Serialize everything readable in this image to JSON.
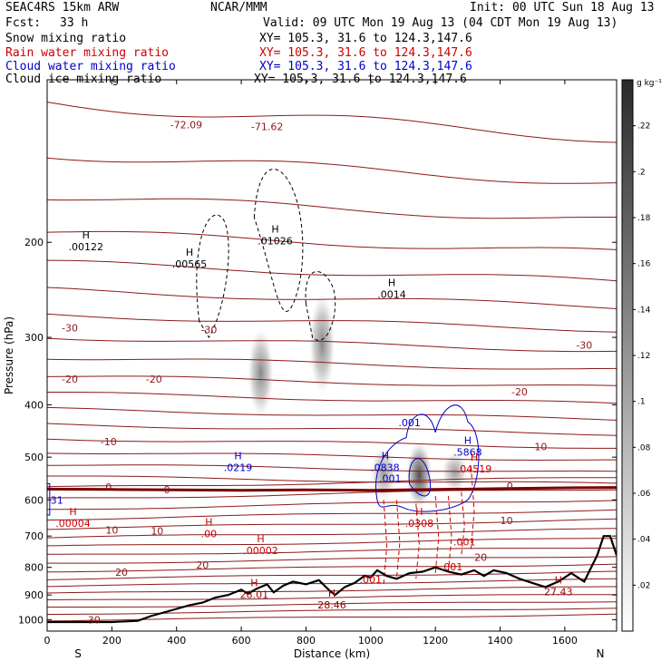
{
  "header": {
    "model": "SEAC4RS 15km ARW",
    "center": "NCAR/MMM",
    "init": "Init: 00 UTC Sun 18 Aug 13",
    "fcst_label": "Fcst:",
    "fcst_value": "33 h",
    "valid": "Valid: 09 UTC Mon 19 Aug 13 (04 CDT Mon 19 Aug 13)",
    "fields": [
      {
        "name": "Snow mixing ratio",
        "xy": "XY= 105.3, 31.6 to 124.3,147.6",
        "color": "#000000"
      },
      {
        "name": "Rain water mixing ratio",
        "xy": "XY= 105.3, 31.6 to 124.3,147.6",
        "color": "#cc0000"
      },
      {
        "name": "Cloud water mixing ratio",
        "xy": "XY= 105.3, 31.6 to 124.3,147.6",
        "color": "#0000cc"
      },
      {
        "name": "Cloud ice mixing ratio",
        "xy": "XY= 105.3, 31.6 to 124.3,147.6",
        "color": "#000000"
      }
    ]
  },
  "chart_data": {
    "type": "contour cross-section",
    "xlabel": "Distance (km)",
    "ylabel": "Pressure (hPa)",
    "xlim": [
      0,
      1760
    ],
    "ylim": [
      1050,
      100
    ],
    "y_scale": "log",
    "x_ticks": [
      "0",
      "200",
      "400",
      "600",
      "800",
      "1000",
      "1200",
      "1400",
      "1600"
    ],
    "y_ticks": [
      "200",
      "300",
      "400",
      "500",
      "600",
      "700",
      "800",
      "900",
      "1000"
    ],
    "endpoints": {
      "left": "S",
      "right": "N"
    },
    "colorbar": {
      "unit": "g kg⁻¹",
      "ticks": [
        ".02",
        ".04",
        ".06",
        ".08",
        ".1",
        ".12",
        ".14",
        ".16",
        ".18",
        ".2",
        ".22"
      ],
      "range": [
        0,
        0.24
      ]
    },
    "temperature_labels": [
      {
        "text": "-72.09",
        "x": 430,
        "p": 121
      },
      {
        "text": "-71.62",
        "x": 680,
        "p": 122
      },
      {
        "text": "-30",
        "x": 70,
        "p": 288
      },
      {
        "text": "-30",
        "x": 500,
        "p": 290
      },
      {
        "text": "-30",
        "x": 1660,
        "p": 310
      },
      {
        "text": "-20",
        "x": 70,
        "p": 358
      },
      {
        "text": "-20",
        "x": 330,
        "p": 358
      },
      {
        "text": "-20",
        "x": 1460,
        "p": 378
      },
      {
        "text": "-10",
        "x": 190,
        "p": 468
      },
      {
        "text": "-10",
        "x": 1520,
        "p": 478
      },
      {
        "text": "0",
        "x": 190,
        "p": 568
      },
      {
        "text": "0",
        "x": 370,
        "p": 574
      },
      {
        "text": "0",
        "x": 1430,
        "p": 565
      },
      {
        "text": "10",
        "x": 200,
        "p": 682
      },
      {
        "text": "10",
        "x": 340,
        "p": 685
      },
      {
        "text": "10",
        "x": 1420,
        "p": 655
      },
      {
        "text": "20",
        "x": 230,
        "p": 816
      },
      {
        "text": "20",
        "x": 480,
        "p": 791
      },
      {
        "text": "20",
        "x": 1340,
        "p": 766
      },
      {
        "text": "30",
        "x": 145,
        "p": 1000
      }
    ],
    "extrema": [
      {
        "kind": "H",
        "value": ".00122",
        "x": 120,
        "p": 200,
        "color": "#000000"
      },
      {
        "kind": "H",
        "value": ".00565",
        "x": 440,
        "p": 215,
        "color": "#000000"
      },
      {
        "kind": "H",
        "value": ".01026",
        "x": 705,
        "p": 195,
        "color": "#000000"
      },
      {
        "kind": "H",
        "value": ".0014",
        "x": 1065,
        "p": 245,
        "color": "#000000"
      },
      {
        "kind": "H",
        "value": ".0219",
        "x": 590,
        "p": 512,
        "color": "#0000cc"
      },
      {
        "kind": "H",
        "value": ".0838",
        "x": 1045,
        "p": 512,
        "color": "#0000cc"
      },
      {
        "kind": "H",
        "value": ".5868",
        "x": 1300,
        "p": 480,
        "color": "#0000cc"
      },
      {
        "kind": "H",
        "value": ".00004",
        "x": 80,
        "p": 650,
        "color": "#cc0000"
      },
      {
        "kind": "H",
        "value": ".00",
        "x": 500,
        "p": 680,
        "color": "#cc0000"
      },
      {
        "kind": "H",
        "value": ".00002",
        "x": 660,
        "p": 730,
        "color": "#cc0000"
      },
      {
        "kind": "H",
        "value": ".0308",
        "x": 1150,
        "p": 650,
        "color": "#cc0000"
      },
      {
        "kind": "H",
        "value": ".04519",
        "x": 1320,
        "p": 515,
        "color": "#cc0000"
      },
      {
        "kind": "H",
        "value": "28.01",
        "x": 640,
        "p": 880,
        "color": "#990000"
      },
      {
        "kind": "H",
        "value": "28.46",
        "x": 880,
        "p": 920,
        "color": "#990000"
      },
      {
        "kind": "H",
        "value": "27.43",
        "x": 1580,
        "p": 870,
        "color": "#990000"
      }
    ],
    "small_labels": [
      {
        "text": ".001",
        "x": 1120,
        "p": 438,
        "color": "#0000cc"
      },
      {
        "text": ".001",
        "x": 1060,
        "p": 556,
        "color": "#0000cc"
      },
      {
        "text": "31",
        "x": 30,
        "p": 610,
        "color": "#0000cc"
      },
      {
        "text": ".001",
        "x": 1290,
        "p": 728,
        "color": "#cc0000"
      },
      {
        "text": ".001",
        "x": 1000,
        "p": 855,
        "color": "#cc0000"
      },
      {
        "text": ".001",
        "x": 1250,
        "p": 810,
        "color": "#cc0000"
      }
    ],
    "terrain": {
      "x": [
        0,
        100,
        200,
        280,
        320,
        360,
        400,
        440,
        480,
        520,
        560,
        600,
        620,
        650,
        680,
        700,
        730,
        760,
        800,
        840,
        870,
        890,
        920,
        950,
        980,
        1000,
        1020,
        1050,
        1080,
        1120,
        1160,
        1200,
        1240,
        1280,
        1320,
        1350,
        1380,
        1420,
        1460,
        1500,
        1540,
        1580,
        1620,
        1660,
        1700,
        1720,
        1740,
        1760
      ],
      "p": [
        1010,
        1010,
        1010,
        1005,
        985,
        970,
        955,
        940,
        930,
        910,
        900,
        880,
        895,
        875,
        860,
        890,
        865,
        850,
        860,
        845,
        880,
        900,
        870,
        855,
        830,
        835,
        810,
        830,
        840,
        820,
        815,
        800,
        815,
        825,
        810,
        830,
        810,
        820,
        840,
        855,
        870,
        850,
        820,
        850,
        760,
        700,
        700,
        760
      ]
    },
    "freezing_level": {
      "x": [
        0,
        200,
        400,
        600,
        800,
        1000,
        1200,
        1400,
        1600,
        1760
      ],
      "p": [
        573,
        574,
        575,
        576,
        575,
        576,
        574,
        572,
        570,
        569
      ]
    },
    "snow_shading": [
      {
        "x": 660,
        "p_top": 290,
        "p_bot": 420,
        "intensity": 0.6
      },
      {
        "x": 850,
        "p_top": 250,
        "p_bot": 380,
        "intensity": 0.6
      },
      {
        "x": 1040,
        "p_top": 480,
        "p_bot": 600,
        "intensity": 0.5
      },
      {
        "x": 1150,
        "p_top": 470,
        "p_bot": 620,
        "intensity": 0.9
      },
      {
        "x": 1260,
        "p_top": 490,
        "p_bot": 580,
        "intensity": 0.5
      }
    ]
  }
}
